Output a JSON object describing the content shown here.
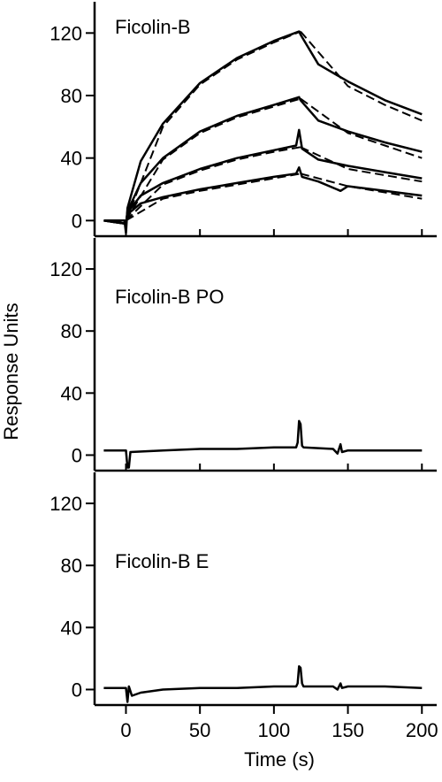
{
  "chart_data": {
    "type": "line",
    "ylabel": "Response Units",
    "xlabel": "Time (s)",
    "xlim": [
      -20,
      210
    ],
    "x_ticks": [
      0,
      50,
      100,
      150,
      200
    ],
    "grid": false,
    "panels": [
      {
        "name": "Ficolin-B",
        "ylim": [
          -10,
          140
        ],
        "y_ticks": [
          0,
          40,
          80,
          120
        ],
        "series": [
          {
            "style": "measured",
            "x": [
              -15,
              -1,
              0,
              1,
              10,
              25,
              50,
              75,
              100,
              117,
              118,
              130,
              150,
              175,
              200
            ],
            "y": [
              0,
              0,
              -8,
              8,
              38,
              62,
              88,
              104,
              115,
              121,
              119,
              100,
              89,
              77,
              68
            ]
          },
          {
            "style": "measured",
            "x": [
              -15,
              0,
              1,
              10,
              25,
              50,
              75,
              100,
              117,
              118,
              130,
              150,
              175,
              200
            ],
            "y": [
              0,
              -2,
              6,
              24,
              40,
              57,
              67,
              74,
              79,
              77,
              64,
              57,
              50,
              44
            ]
          },
          {
            "style": "measured",
            "x": [
              -15,
              0,
              1,
              10,
              25,
              50,
              75,
              100,
              115,
              117,
              119,
              130,
              150,
              175,
              200
            ],
            "y": [
              0,
              -2,
              5,
              16,
              24,
              33,
              40,
              45,
              48,
              58,
              46,
              39,
              35,
              31,
              27
            ]
          },
          {
            "style": "measured",
            "x": [
              -15,
              0,
              1,
              10,
              25,
              50,
              75,
              100,
              115,
              117,
              119,
              130,
              145,
              150,
              175,
              200
            ],
            "y": [
              0,
              -2,
              4,
              11,
              15,
              20,
              24,
              28,
              30,
              34,
              28,
              25,
              19,
              22,
              19,
              16
            ]
          },
          {
            "style": "fit",
            "x": [
              0,
              25,
              50,
              75,
              100,
              118
            ],
            "y": [
              0,
              60,
              87,
              103,
              114,
              121
            ]
          },
          {
            "style": "fit",
            "x": [
              118,
              150,
              175,
              200
            ],
            "y": [
              121,
              86,
              74,
              64
            ]
          },
          {
            "style": "fit",
            "x": [
              0,
              25,
              50,
              75,
              100,
              118
            ],
            "y": [
              0,
              39,
              56,
              66,
              73,
              78
            ]
          },
          {
            "style": "fit",
            "x": [
              118,
              150,
              175,
              200
            ],
            "y": [
              78,
              56,
              48,
              40
            ]
          },
          {
            "style": "fit",
            "x": [
              0,
              25,
              50,
              75,
              100,
              118
            ],
            "y": [
              0,
              23,
              32,
              39,
              44,
              47
            ]
          },
          {
            "style": "fit",
            "x": [
              118,
              150,
              175,
              200
            ],
            "y": [
              47,
              33,
              29,
              25
            ]
          },
          {
            "style": "fit",
            "x": [
              0,
              25,
              50,
              75,
              100,
              118
            ],
            "y": [
              0,
              14,
              19,
              23,
              27,
              30
            ]
          },
          {
            "style": "fit",
            "x": [
              118,
              150,
              175,
              200
            ],
            "y": [
              30,
              22,
              18,
              14
            ]
          }
        ]
      },
      {
        "name": "Ficolin-B PO",
        "ylim": [
          -10,
          140
        ],
        "y_ticks": [
          0,
          40,
          80,
          120
        ],
        "series": [
          {
            "style": "measured",
            "x": [
              -15,
              0,
              1,
              2,
              3,
              25,
              50,
              75,
              100,
              115,
              116,
              117,
              118,
              119,
              120,
              140,
              143,
              145,
              146,
              150,
              175,
              200
            ],
            "y": [
              3,
              3,
              -8,
              -8,
              2,
              3,
              4,
              4,
              5,
              5,
              8,
              22,
              20,
              6,
              5,
              4,
              1,
              7,
              2,
              3,
              3,
              3
            ]
          }
        ]
      },
      {
        "name": "Ficolin-B E",
        "ylim": [
          -10,
          140
        ],
        "y_ticks": [
          0,
          40,
          80,
          120
        ],
        "series": [
          {
            "style": "measured",
            "x": [
              -15,
              0,
              1,
              2,
              4,
              10,
              25,
              50,
              75,
              100,
              115,
              116,
              117,
              118,
              119,
              120,
              140,
              143,
              145,
              146,
              150,
              175,
              200
            ],
            "y": [
              1,
              1,
              -8,
              2,
              -4,
              -2,
              0,
              1,
              1,
              2,
              2,
              4,
              15,
              14,
              4,
              2,
              2,
              0,
              4,
              1,
              2,
              2,
              1
            ]
          }
        ]
      }
    ]
  }
}
